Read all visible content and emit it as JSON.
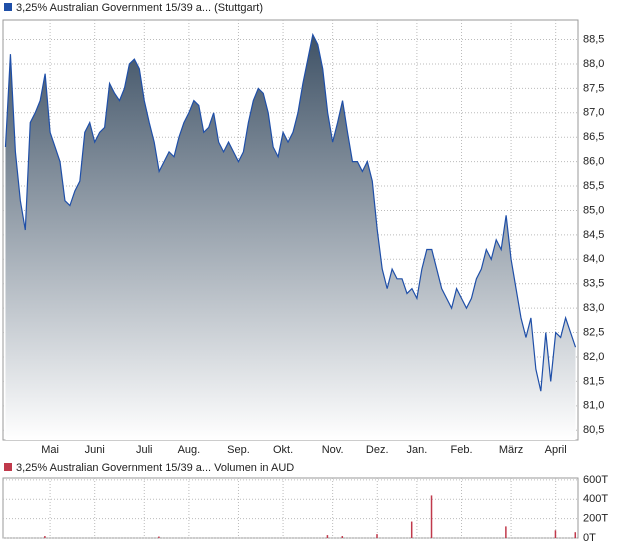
{
  "chart_data": [
    {
      "type": "area",
      "series": [
        {
          "name": "3,25% Australian Government 15/39 a... (Stuttgart)",
          "color": "#1f4fa8",
          "values": [
            86.3,
            88.2,
            86.2,
            85.2,
            84.6,
            86.8,
            87.0,
            87.25,
            87.8,
            86.6,
            86.3,
            86.0,
            85.2,
            85.1,
            85.4,
            85.6,
            86.6,
            86.8,
            86.4,
            86.6,
            86.7,
            87.6,
            87.4,
            87.25,
            87.5,
            88.0,
            88.1,
            87.9,
            87.25,
            86.8,
            86.4,
            85.8,
            86.0,
            86.2,
            86.1,
            86.5,
            86.8,
            87.0,
            87.25,
            87.15,
            86.6,
            86.7,
            87.0,
            86.4,
            86.2,
            86.4,
            86.2,
            86.0,
            86.2,
            86.8,
            87.25,
            87.5,
            87.4,
            87.0,
            86.3,
            86.1,
            86.6,
            86.4,
            86.6,
            87.0,
            87.6,
            88.1,
            88.6,
            88.4,
            87.9,
            87.0,
            86.4,
            86.8,
            87.25,
            86.6,
            86.0,
            86.0,
            85.8,
            86.0,
            85.6,
            84.6,
            83.8,
            83.4,
            83.8,
            83.6,
            83.6,
            83.3,
            83.4,
            83.2,
            83.8,
            84.2,
            84.2,
            83.8,
            83.4,
            83.2,
            83.0,
            83.4,
            83.2,
            83.0,
            83.2,
            83.6,
            83.8,
            84.2,
            84.0,
            84.4,
            84.2,
            84.9,
            84.0,
            83.4,
            82.8,
            82.4,
            82.8,
            81.75,
            81.3,
            82.5,
            81.5,
            82.5,
            82.4,
            82.8,
            82.5,
            82.2
          ]
        }
      ],
      "categories": [
        null,
        null,
        null,
        null,
        null,
        null,
        null,
        null,
        null,
        "Mai",
        null,
        null,
        null,
        null,
        null,
        null,
        null,
        null,
        "Juni",
        null,
        null,
        null,
        null,
        null,
        null,
        null,
        null,
        null,
        "Juli",
        null,
        null,
        null,
        null,
        null,
        null,
        null,
        null,
        "Aug.",
        null,
        null,
        null,
        null,
        null,
        null,
        null,
        null,
        null,
        "Sep.",
        null,
        null,
        null,
        null,
        null,
        null,
        null,
        null,
        "Okt.",
        null,
        null,
        null,
        null,
        null,
        null,
        null,
        null,
        null,
        "Nov.",
        null,
        null,
        null,
        null,
        null,
        null,
        null,
        null,
        "Dez.",
        null,
        null,
        null,
        null,
        null,
        null,
        null,
        "Jan.",
        null,
        null,
        null,
        null,
        null,
        null,
        null,
        null,
        "Feb.",
        null,
        null,
        null,
        null,
        null,
        null,
        null,
        null,
        null,
        "März",
        null,
        null,
        null,
        null,
        null,
        null,
        null,
        null,
        "April",
        null,
        null,
        null,
        null
      ],
      "ylim": [
        80.3,
        88.9
      ],
      "yticks": [
        {
          "value": 80.5,
          "label": "80,5"
        },
        {
          "value": 81,
          "label": "81,0"
        },
        {
          "value": 81.5,
          "label": "81,5"
        },
        {
          "value": 82,
          "label": "82,0"
        },
        {
          "value": 82.5,
          "label": "82,5"
        },
        {
          "value": 83,
          "label": "83,0"
        },
        {
          "value": 83.5,
          "label": "83,5"
        },
        {
          "value": 84,
          "label": "84,0"
        },
        {
          "value": 84.5,
          "label": "84,5"
        },
        {
          "value": 85,
          "label": "85,0"
        },
        {
          "value": 85.5,
          "label": "85,5"
        },
        {
          "value": 86,
          "label": "86,0"
        },
        {
          "value": 86.5,
          "label": "86,5"
        },
        {
          "value": 87,
          "label": "87,0"
        },
        {
          "value": 87.5,
          "label": "87,5"
        },
        {
          "value": 88,
          "label": "88,0"
        },
        {
          "value": 88.5,
          "label": "88,5"
        }
      ],
      "grid": true
    },
    {
      "type": "bar",
      "series": [
        {
          "name": "3,25% Australian Government 15/39 a... Volumen in AUD",
          "color": "#c0394b",
          "values": [
            0,
            0,
            0,
            0,
            0,
            0,
            0,
            0,
            20,
            0,
            0,
            0,
            0,
            0,
            0,
            0,
            0,
            0,
            0,
            0,
            0,
            0,
            0,
            0,
            0,
            0,
            0,
            0,
            0,
            0,
            0,
            15,
            0,
            0,
            0,
            0,
            0,
            0,
            0,
            0,
            0,
            0,
            0,
            0,
            0,
            0,
            0,
            0,
            0,
            0,
            0,
            0,
            0,
            0,
            0,
            0,
            0,
            0,
            0,
            0,
            0,
            0,
            0,
            0,
            0,
            30,
            0,
            0,
            20,
            0,
            0,
            0,
            0,
            0,
            0,
            40,
            0,
            0,
            0,
            0,
            0,
            0,
            170,
            0,
            0,
            0,
            440,
            0,
            0,
            0,
            0,
            0,
            0,
            0,
            0,
            0,
            0,
            0,
            0,
            0,
            0,
            120,
            0,
            0,
            0,
            0,
            0,
            0,
            0,
            0,
            0,
            80,
            0,
            0,
            0,
            60
          ]
        }
      ],
      "ylim": [
        0,
        620
      ],
      "yticks": [
        {
          "value": 0,
          "label": "0T"
        },
        {
          "value": 200,
          "label": "200T"
        },
        {
          "value": 400,
          "label": "400T"
        },
        {
          "value": 600,
          "label": "600T"
        }
      ],
      "grid": true
    }
  ]
}
